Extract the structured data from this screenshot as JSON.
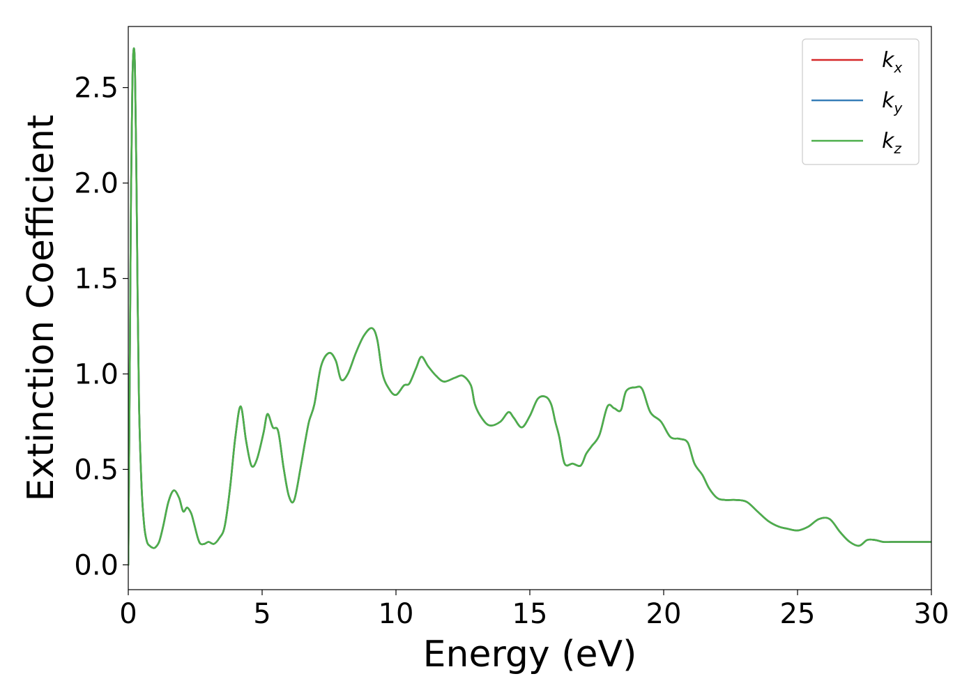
{
  "chart_data": {
    "type": "line",
    "xlabel": "Energy (eV)",
    "ylabel": "Extinction Coefficient",
    "xlim": [
      0,
      30
    ],
    "ylim": [
      -0.13,
      2.82
    ],
    "xticks": [
      0,
      5,
      10,
      15,
      20,
      25,
      30
    ],
    "xtick_labels": [
      "0",
      "5",
      "10",
      "15",
      "20",
      "25",
      "30"
    ],
    "yticks": [
      0.0,
      0.5,
      1.0,
      1.5,
      2.0,
      2.5
    ],
    "ytick_labels": [
      "0.0",
      "0.5",
      "1.0",
      "1.5",
      "2.0",
      "2.5"
    ],
    "grid": false,
    "legend_position": "top-right",
    "series": [
      {
        "name": "k_x",
        "label_base": "k",
        "label_sub": "x",
        "color": "#d62728"
      },
      {
        "name": "k_y",
        "label_base": "k",
        "label_sub": "y",
        "color": "#377eb8"
      },
      {
        "name": "k_z",
        "label_base": "k",
        "label_sub": "z",
        "color": "#4daf4a"
      }
    ],
    "shared_curve": {
      "x": [
        0,
        0.05,
        0.1,
        0.15,
        0.2,
        0.25,
        0.3,
        0.35,
        0.4,
        0.5,
        0.6,
        0.7,
        0.8,
        0.9,
        1.0,
        1.15,
        1.3,
        1.5,
        1.7,
        1.9,
        2.05,
        2.2,
        2.35,
        2.45,
        2.6,
        2.7,
        2.85,
        3.0,
        3.2,
        3.4,
        3.6,
        3.8,
        4.0,
        4.2,
        4.4,
        4.6,
        4.8,
        5.05,
        5.2,
        5.4,
        5.6,
        5.8,
        6.0,
        6.2,
        6.45,
        6.6,
        6.75,
        6.95,
        7.2,
        7.5,
        7.75,
        7.95,
        8.2,
        8.5,
        8.8,
        9.1,
        9.3,
        9.5,
        9.75,
        10.0,
        10.3,
        10.5,
        10.75,
        10.95,
        11.2,
        11.5,
        11.8,
        12.2,
        12.5,
        12.8,
        12.95,
        13.2,
        13.5,
        13.9,
        14.2,
        14.4,
        14.7,
        15.0,
        15.3,
        15.6,
        15.8,
        15.95,
        16.1,
        16.3,
        16.6,
        16.9,
        17.1,
        17.3,
        17.6,
        17.9,
        18.15,
        18.4,
        18.6,
        18.95,
        19.2,
        19.5,
        19.9,
        20.25,
        20.6,
        20.9,
        21.15,
        21.45,
        21.7,
        22.0,
        22.3,
        22.7,
        23.1,
        23.5,
        23.9,
        24.3,
        24.6,
        25.0,
        25.4,
        25.8,
        26.2,
        26.6,
        26.95,
        27.3,
        27.6,
        27.9,
        28.2,
        28.5,
        28.85,
        29.2,
        29.5,
        29.8,
        30.0
      ],
      "y": [
        0.0,
        0.9,
        1.9,
        2.5,
        2.7,
        2.6,
        2.1,
        1.4,
        0.85,
        0.4,
        0.2,
        0.12,
        0.1,
        0.09,
        0.09,
        0.12,
        0.2,
        0.33,
        0.39,
        0.35,
        0.28,
        0.3,
        0.27,
        0.22,
        0.14,
        0.11,
        0.11,
        0.12,
        0.11,
        0.14,
        0.2,
        0.4,
        0.67,
        0.83,
        0.65,
        0.52,
        0.55,
        0.69,
        0.79,
        0.72,
        0.7,
        0.51,
        0.36,
        0.34,
        0.52,
        0.64,
        0.75,
        0.84,
        1.04,
        1.11,
        1.07,
        0.97,
        1.0,
        1.11,
        1.2,
        1.24,
        1.18,
        1.0,
        0.92,
        0.89,
        0.94,
        0.95,
        1.03,
        1.09,
        1.04,
        0.99,
        0.96,
        0.98,
        0.99,
        0.94,
        0.84,
        0.77,
        0.73,
        0.75,
        0.8,
        0.77,
        0.72,
        0.78,
        0.87,
        0.88,
        0.84,
        0.75,
        0.67,
        0.53,
        0.53,
        0.52,
        0.58,
        0.62,
        0.68,
        0.83,
        0.82,
        0.81,
        0.91,
        0.93,
        0.92,
        0.8,
        0.75,
        0.67,
        0.66,
        0.64,
        0.53,
        0.47,
        0.4,
        0.35,
        0.34,
        0.34,
        0.33,
        0.28,
        0.23,
        0.2,
        0.19,
        0.18,
        0.2,
        0.24,
        0.24,
        0.17,
        0.12,
        0.1,
        0.13,
        0.13,
        0.12,
        0.12,
        0.12,
        0.12,
        0.12,
        0.12,
        0.12
      ]
    }
  }
}
